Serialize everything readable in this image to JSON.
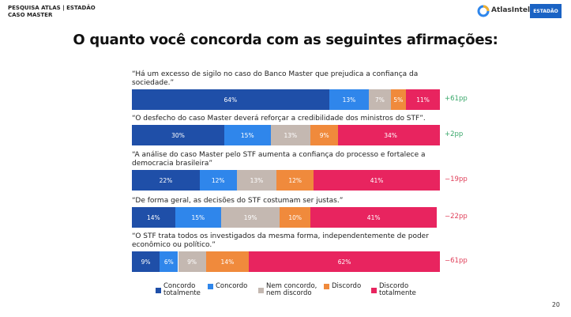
{
  "header": {
    "source": "PESQUISA ATLAS | ESTADÃO",
    "subtitle": "CASO MASTER"
  },
  "logos": {
    "atlas": "AtlasIntel",
    "estadao": "ESTADÃO"
  },
  "page_number": "20",
  "chart_data": {
    "type": "bar",
    "orientation": "horizontal",
    "stacked": true,
    "title": "O quanto você concorda com as seguintes afirmações:",
    "categories": [
      "“Há um excesso de sigilo no caso do Banco Master que prejudica a confiança da sociedade.”",
      "“O desfecho do caso Master deverá reforçar a credibilidade dos ministros do STF”.",
      "“A análise do caso Master pelo STF aumenta a confiança do processo e fortalece a democracia brasileira”",
      "“De forma geral, as decisões do STF costumam ser justas.”",
      "“O STF trata todos os investigados da mesma forma, independentemente de poder econômico ou político.”"
    ],
    "series": [
      {
        "name": "Concordo totalmente",
        "color": "#1f4fa8",
        "values": [
          64,
          30,
          22,
          14,
          9
        ],
        "value_labels": [
          "64%",
          "30%",
          "22%",
          "14%",
          "9%"
        ]
      },
      {
        "name": "Concordo",
        "color": "#2f86eb",
        "values": [
          13,
          15,
          12,
          15,
          6
        ],
        "value_labels": [
          "13%",
          "15%",
          "12%",
          "15%",
          "6%"
        ]
      },
      {
        "name": "Nem concordo, nem discordo",
        "color": "#c4b8b1",
        "values": [
          7,
          13,
          13,
          19,
          9
        ],
        "value_labels": [
          "7%",
          "13%",
          "13%",
          "19%",
          "9%"
        ]
      },
      {
        "name": "Discordo",
        "color": "#f08a3c",
        "values": [
          5,
          9,
          12,
          10,
          14
        ],
        "value_labels": [
          "5%",
          "9%",
          "12%",
          "10%",
          "14%"
        ]
      },
      {
        "name": "Discordo totalmente",
        "color": "#e8245f",
        "values": [
          11,
          34,
          41,
          41,
          62
        ],
        "value_labels": [
          "11%",
          "34%",
          "41%",
          "41%",
          "62%"
        ]
      }
    ],
    "xlim": [
      0,
      100
    ],
    "net_labels": [
      "+61pp",
      "+2pp",
      "−19pp",
      "−22pp",
      "−61pp"
    ],
    "net_label_colors": [
      "#3aa86b",
      "#3aa86b",
      "#e0405a",
      "#e0405a",
      "#e0405a"
    ]
  }
}
